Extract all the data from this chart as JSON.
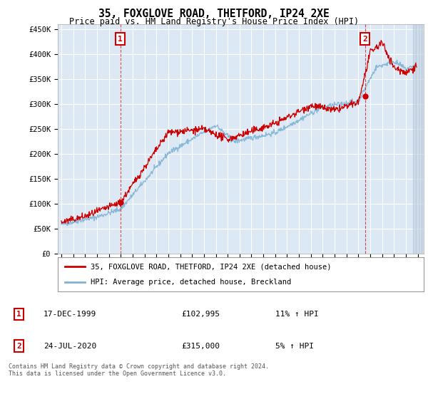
{
  "title": "35, FOXGLOVE ROAD, THETFORD, IP24 2XE",
  "subtitle": "Price paid vs. HM Land Registry's House Price Index (HPI)",
  "ylim": [
    0,
    460000
  ],
  "xlim_start": 1994.7,
  "xlim_end": 2025.5,
  "transaction1": {
    "date_label": "17-DEC-1999",
    "price": 102995,
    "hpi_pct": "11%",
    "x": 1999.96
  },
  "transaction2": {
    "date_label": "24-JUL-2020",
    "price": 315000,
    "hpi_pct": "5%",
    "x": 2020.55
  },
  "legend_property": "35, FOXGLOVE ROAD, THETFORD, IP24 2XE (detached house)",
  "legend_hpi": "HPI: Average price, detached house, Breckland",
  "footnote": "Contains HM Land Registry data © Crown copyright and database right 2024.\nThis data is licensed under the Open Government Licence v3.0.",
  "plot_bg": "#dce9f5",
  "red_color": "#cc0000",
  "blue_color": "#7fb3d3",
  "grid_color": "#ffffff",
  "hatch_bg": "#c8d8e8"
}
